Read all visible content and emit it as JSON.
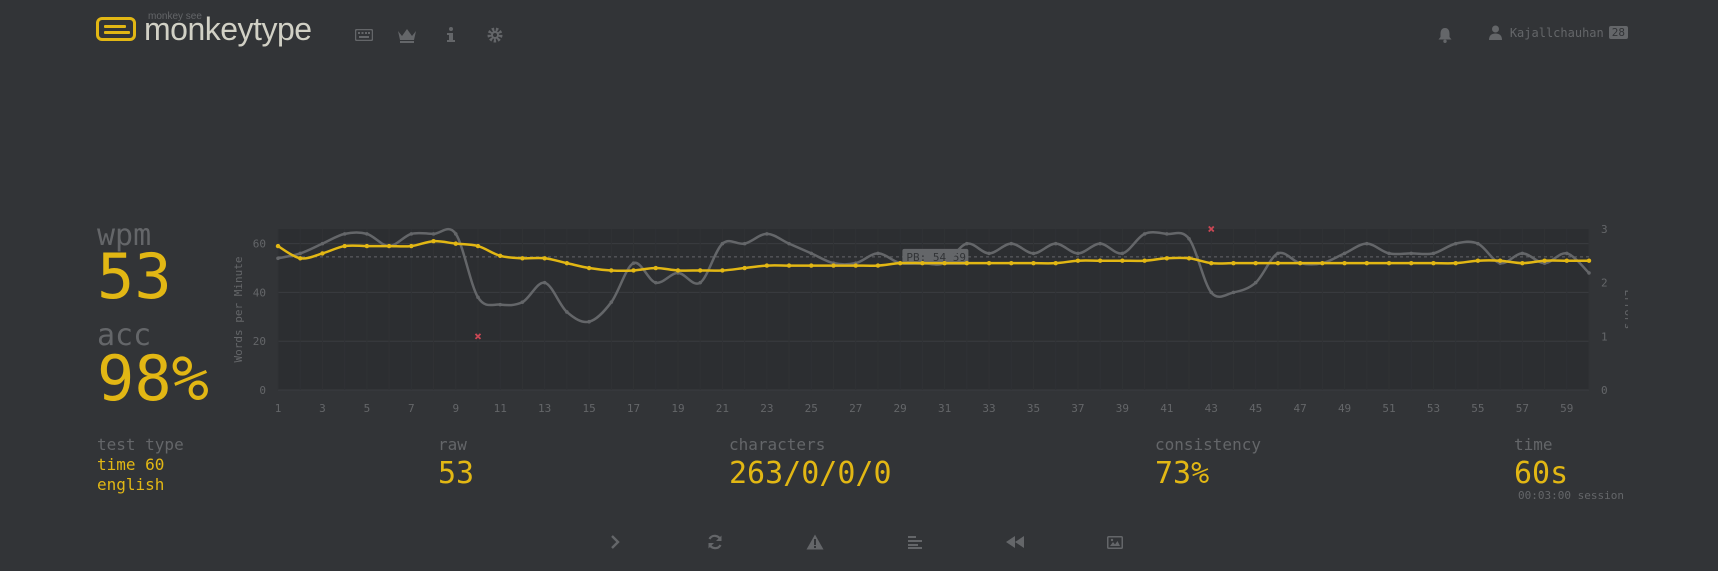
{
  "header": {
    "logo_small": "monkey see",
    "logo_text": "monkeytype",
    "nav": [
      {
        "icon": "keyboard-icon"
      },
      {
        "icon": "crown-icon"
      },
      {
        "icon": "info-icon"
      },
      {
        "icon": "gear-icon"
      }
    ],
    "notification_icon": "bell-icon",
    "user_icon": "user-icon",
    "username": "Kajallchauhan",
    "level": "28"
  },
  "stats": {
    "wpm_label": "wpm",
    "wpm": "53",
    "acc_label": "acc",
    "acc": "98%",
    "test_type_label": "test type",
    "test_type_line1": "time 60",
    "test_type_line2": "english",
    "raw_label": "raw",
    "raw": "53",
    "characters_label": "characters",
    "characters": "263/0/0/0",
    "consistency_label": "consistency",
    "consistency": "73%",
    "time_label": "time",
    "time": "60s",
    "session": "00:03:00 session"
  },
  "actions": [
    {
      "icon": "next-test-icon"
    },
    {
      "icon": "restart-icon"
    },
    {
      "icon": "report-icon"
    },
    {
      "icon": "words-history-icon"
    },
    {
      "icon": "replay-icon"
    },
    {
      "icon": "screenshot-icon"
    }
  ],
  "colors": {
    "background": "#323437",
    "main": "#e2b714",
    "sub": "#646669",
    "text": "#d1d0c5",
    "error": "#ca4754"
  },
  "chart_data": {
    "type": "line",
    "ylabel": "Words per Minute",
    "y2label": "Errors",
    "x": [
      1,
      2,
      3,
      4,
      5,
      6,
      7,
      8,
      9,
      10,
      11,
      12,
      13,
      14,
      15,
      16,
      17,
      18,
      19,
      20,
      21,
      22,
      23,
      24,
      25,
      26,
      27,
      28,
      29,
      30,
      31,
      32,
      33,
      34,
      35,
      36,
      37,
      38,
      39,
      40,
      41,
      42,
      43,
      44,
      45,
      46,
      47,
      48,
      49,
      50,
      51,
      52,
      53,
      54,
      55,
      56,
      57,
      58,
      59,
      60
    ],
    "xticks": [
      1,
      3,
      5,
      7,
      9,
      11,
      13,
      15,
      17,
      19,
      21,
      23,
      25,
      27,
      29,
      31,
      33,
      35,
      37,
      39,
      41,
      43,
      45,
      47,
      49,
      51,
      53,
      55,
      57,
      59
    ],
    "ylim": [
      0,
      66
    ],
    "yticks": [
      0,
      20,
      40,
      60
    ],
    "y2lim": [
      0,
      3
    ],
    "y2ticks": [
      0,
      1,
      2,
      3
    ],
    "pb_value": 54.59,
    "pb_label": "PB: 54.59",
    "series": [
      {
        "name": "wpm",
        "color": "#e2b714",
        "values": [
          59,
          54,
          56,
          59,
          59,
          59,
          59,
          61,
          60,
          59,
          55,
          54,
          54,
          52,
          50,
          49,
          49,
          50,
          49,
          49,
          49,
          50,
          51,
          51,
          51,
          51,
          51,
          51,
          52,
          52,
          52,
          52,
          52,
          52,
          52,
          52,
          53,
          53,
          53,
          53,
          54,
          54,
          52,
          52,
          52,
          52,
          52,
          52,
          52,
          52,
          52,
          52,
          52,
          52,
          53,
          53,
          52,
          53,
          53,
          53
        ]
      },
      {
        "name": "raw",
        "color": "#646669",
        "values": [
          54,
          56,
          60,
          64,
          64,
          59,
          64,
          64,
          64,
          38,
          35,
          36,
          44,
          32,
          28,
          36,
          52,
          44,
          48,
          44,
          60,
          60,
          64,
          60,
          56,
          52,
          52,
          56,
          52,
          52,
          52,
          60,
          56,
          60,
          56,
          60,
          56,
          60,
          56,
          64,
          64,
          62,
          40,
          40,
          44,
          56,
          52,
          52,
          56,
          60,
          56,
          56,
          56,
          60,
          60,
          52,
          56,
          52,
          56,
          48
        ]
      },
      {
        "name": "errors",
        "color": "#ca4754",
        "points": [
          [
            10,
            1
          ],
          [
            43,
            3
          ]
        ]
      }
    ]
  }
}
